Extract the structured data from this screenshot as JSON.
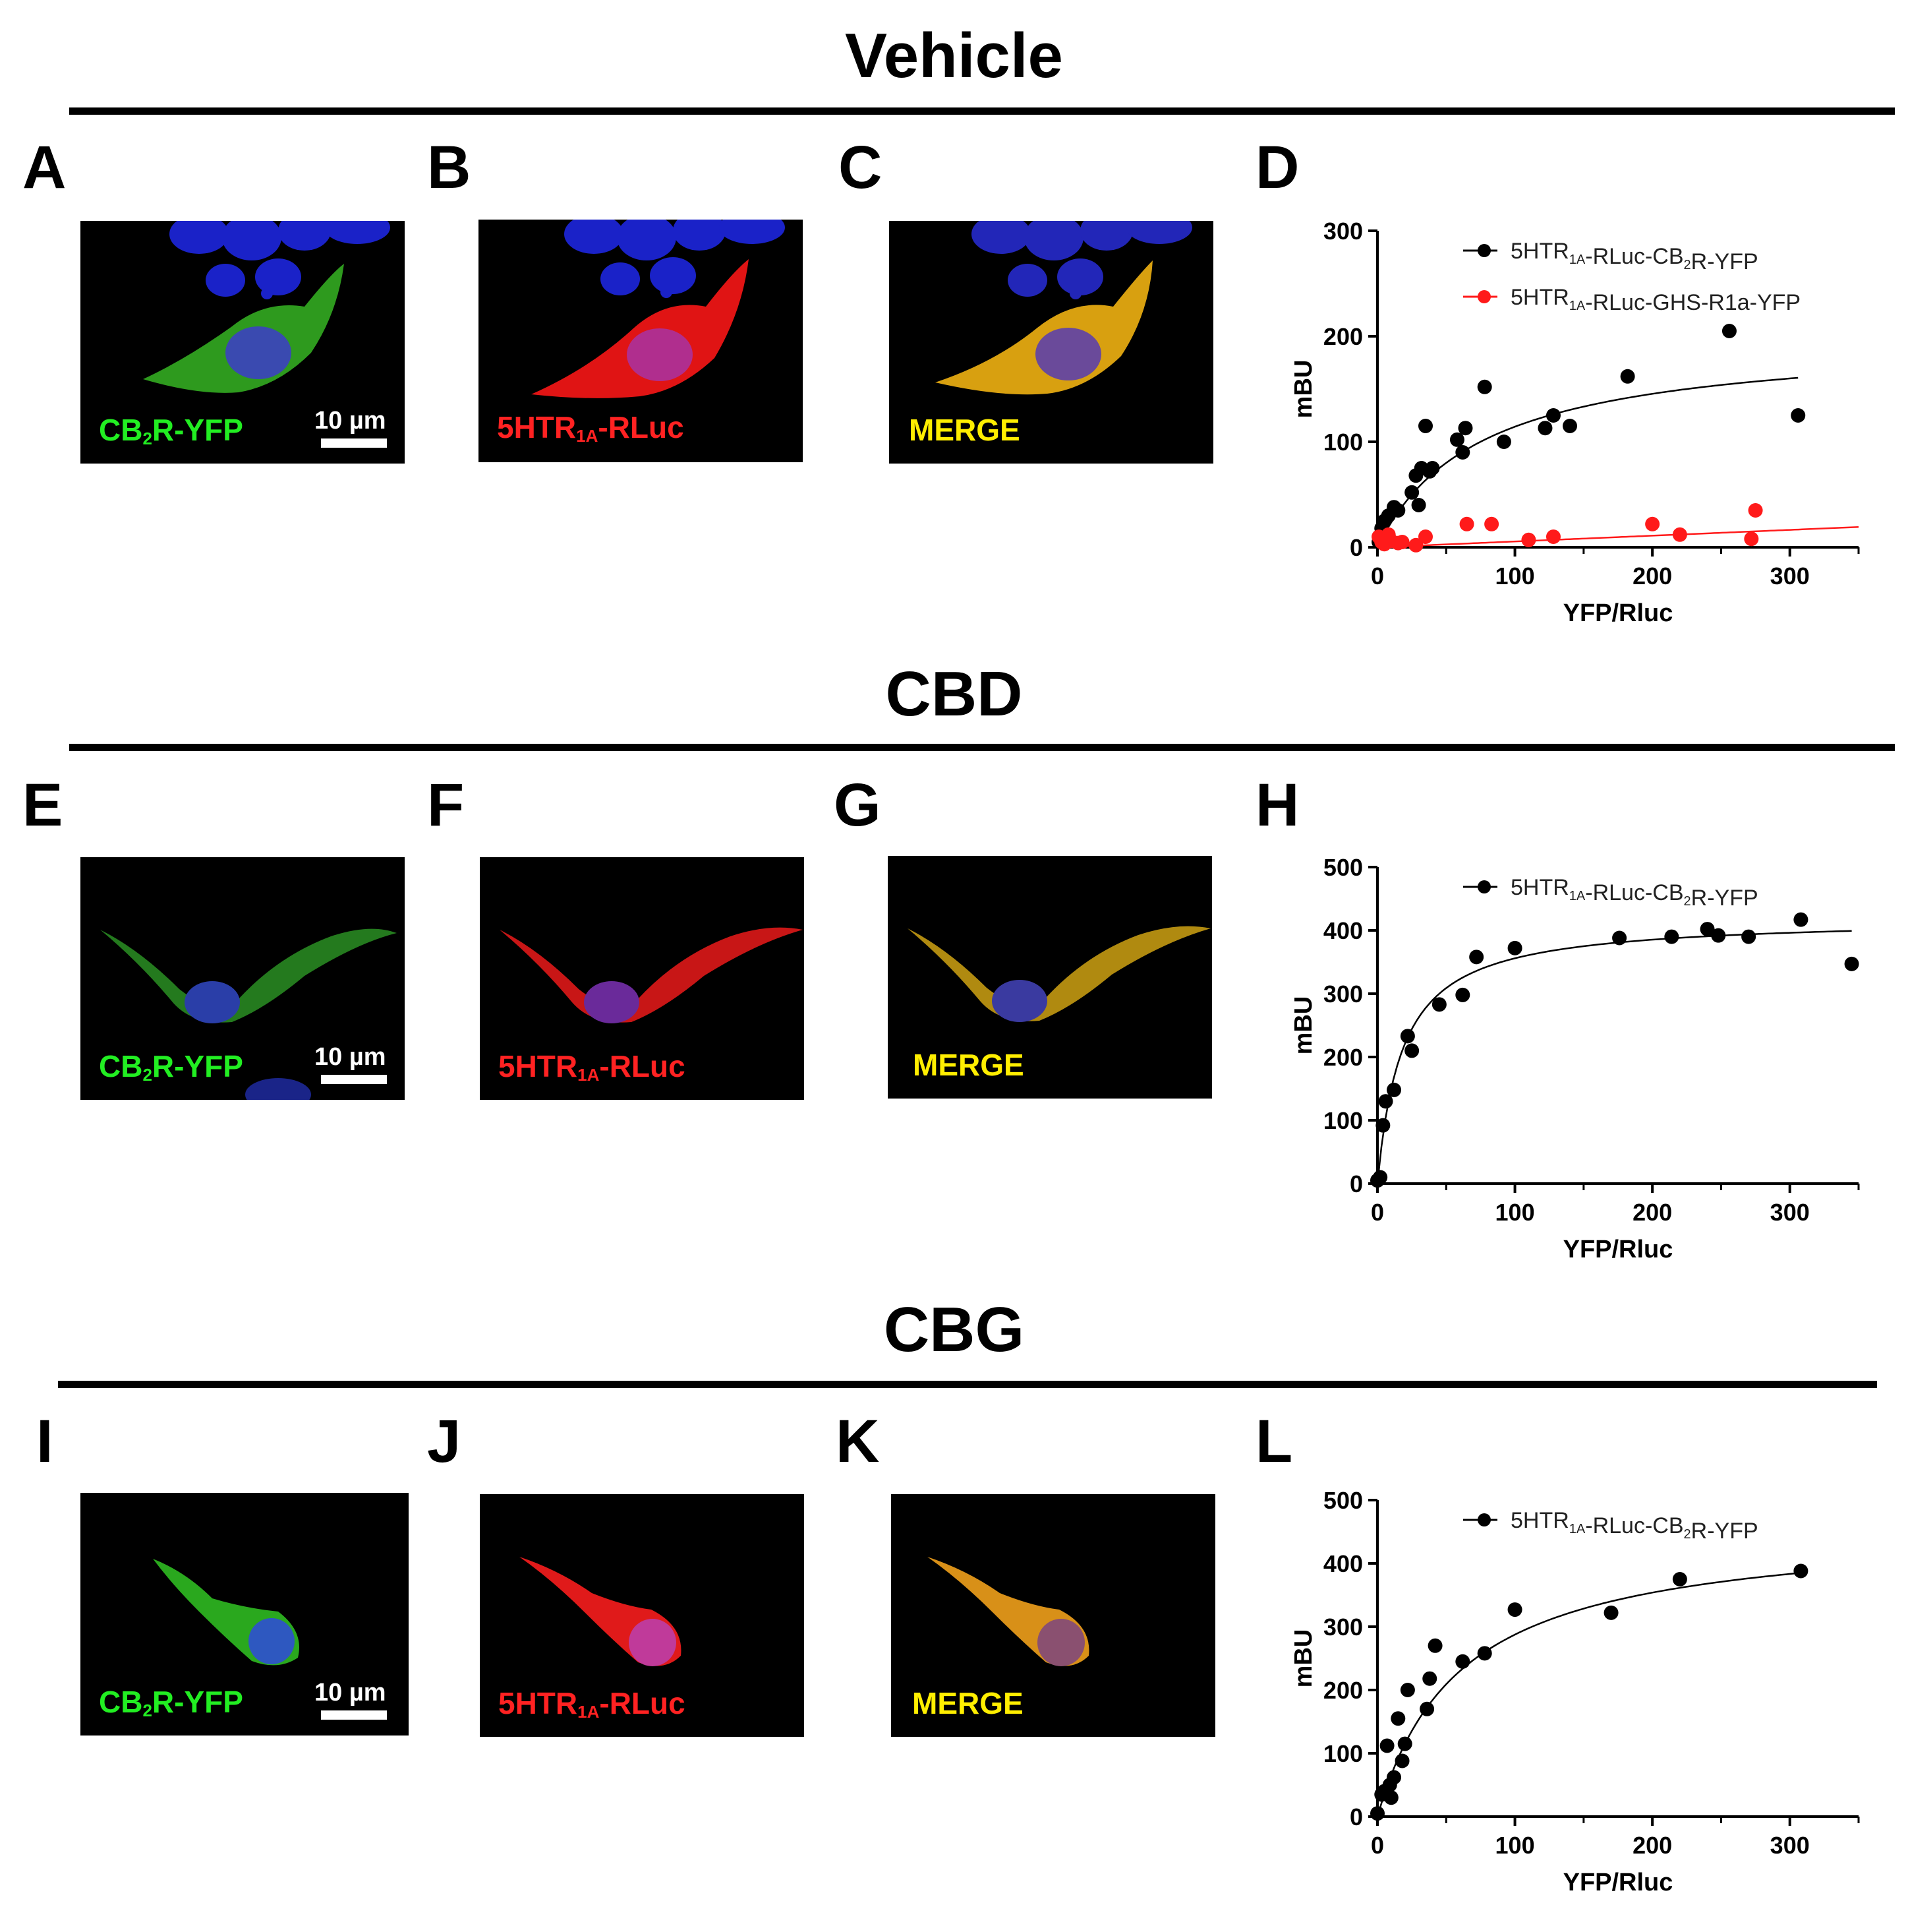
{
  "sections": [
    {
      "title": "Vehicle",
      "letters": [
        "A",
        "B",
        "C",
        "D"
      ]
    },
    {
      "title": "CBD",
      "letters": [
        "E",
        "F",
        "G",
        "H"
      ]
    },
    {
      "title": "CBG",
      "letters": [
        "I",
        "J",
        "K",
        "L"
      ]
    }
  ],
  "micrograph_labels": {
    "green_main": "CB",
    "green_sub": "2",
    "green_rest": "R-YFP",
    "red_main": "5HTR",
    "red_sub": "1A",
    "red_rest": "-RLuc",
    "merge": "MERGE",
    "scale": "10 µm"
  },
  "colors": {
    "black_series": "#000000",
    "red_series": "#ff1a1a",
    "green": "#22ee22",
    "red": "#ff2222",
    "yellow": "#ffee00"
  },
  "chart_data": [
    {
      "type": "scatter",
      "panel": "D",
      "xlabel": "YFP/Rluc",
      "ylabel": "mBU",
      "xlim": [
        0,
        350
      ],
      "ylim": [
        0,
        300
      ],
      "xticks": [
        0,
        100,
        200,
        300
      ],
      "yticks": [
        0,
        100,
        200,
        300
      ],
      "series": [
        {
          "name": "5HTR1A-RLuc-CB2R-YFP",
          "label_main": "5HTR",
          "label_sub1": "1A",
          "label_mid": "-RLuc-CB",
          "label_sub2": "2",
          "label_end": "R-YFP",
          "color": "#000000",
          "fit": {
            "model": "hyperbola",
            "bmax": 200,
            "kd": 75
          },
          "points": [
            [
              1,
              5
            ],
            [
              3,
              18
            ],
            [
              5,
              25
            ],
            [
              8,
              30
            ],
            [
              12,
              38
            ],
            [
              15,
              35
            ],
            [
              25,
              52
            ],
            [
              28,
              68
            ],
            [
              30,
              40
            ],
            [
              32,
              75
            ],
            [
              35,
              115
            ],
            [
              38,
              72
            ],
            [
              40,
              75
            ],
            [
              58,
              102
            ],
            [
              62,
              90
            ],
            [
              64,
              113
            ],
            [
              78,
              152
            ],
            [
              92,
              100
            ],
            [
              122,
              113
            ],
            [
              128,
              125
            ],
            [
              140,
              115
            ],
            [
              182,
              162
            ],
            [
              256,
              205
            ],
            [
              306,
              125
            ]
          ]
        },
        {
          "name": "5HTR1A-RLuc-GHS-R1a-YFP",
          "label_main": "5HTR",
          "label_sub1": "1A",
          "label_mid": "-RLuc-GHS-R1a-YFP",
          "label_sub2": "",
          "label_end": "",
          "color": "#ff1a1a",
          "fit": {
            "model": "linear",
            "slope": 0.055,
            "intercept": 0
          },
          "points": [
            [
              1,
              10
            ],
            [
              3,
              5
            ],
            [
              5,
              3
            ],
            [
              8,
              12
            ],
            [
              10,
              6
            ],
            [
              15,
              4
            ],
            [
              18,
              5
            ],
            [
              28,
              2
            ],
            [
              35,
              10
            ],
            [
              65,
              22
            ],
            [
              83,
              22
            ],
            [
              110,
              7
            ],
            [
              128,
              10
            ],
            [
              200,
              22
            ],
            [
              220,
              12
            ],
            [
              272,
              8
            ],
            [
              275,
              35
            ]
          ]
        }
      ]
    },
    {
      "type": "scatter",
      "panel": "H",
      "xlabel": "YFP/Rluc",
      "ylabel": "mBU",
      "xlim": [
        0,
        350
      ],
      "ylim": [
        0,
        500
      ],
      "xticks": [
        0,
        100,
        200,
        300
      ],
      "yticks": [
        0,
        100,
        200,
        300,
        400,
        500
      ],
      "series": [
        {
          "name": "5HTR1A-RLuc-CB2R-YFP",
          "label_main": "5HTR",
          "label_sub1": "1A",
          "label_mid": "-RLuc-CB",
          "label_sub2": "2",
          "label_end": "R-YFP",
          "color": "#000000",
          "fit": {
            "model": "hyperbola",
            "bmax": 420,
            "kd": 18
          },
          "points": [
            [
              0,
              5
            ],
            [
              2,
              10
            ],
            [
              4,
              92
            ],
            [
              6,
              130
            ],
            [
              12,
              148
            ],
            [
              22,
              233
            ],
            [
              25,
              210
            ],
            [
              45,
              283
            ],
            [
              62,
              298
            ],
            [
              72,
              358
            ],
            [
              100,
              372
            ],
            [
              176,
              388
            ],
            [
              214,
              390
            ],
            [
              240,
              402
            ],
            [
              248,
              392
            ],
            [
              270,
              390
            ],
            [
              308,
              417
            ],
            [
              345,
              347
            ]
          ]
        }
      ]
    },
    {
      "type": "scatter",
      "panel": "L",
      "xlabel": "YFP/Rluc",
      "ylabel": "mBU",
      "xlim": [
        0,
        350
      ],
      "ylim": [
        0,
        500
      ],
      "xticks": [
        0,
        100,
        200,
        300
      ],
      "yticks": [
        0,
        100,
        200,
        300,
        400,
        500
      ],
      "series": [
        {
          "name": "5HTR1A-RLuc-CB2R-YFP",
          "label_main": "5HTR",
          "label_sub1": "1A",
          "label_mid": "-RLuc-CB",
          "label_sub2": "2",
          "label_end": "R-YFP",
          "color": "#000000",
          "fit": {
            "model": "hyperbola",
            "bmax": 460,
            "kd": 60
          },
          "points": [
            [
              0,
              5
            ],
            [
              3,
              35
            ],
            [
              5,
              40
            ],
            [
              7,
              112
            ],
            [
              9,
              50
            ],
            [
              10,
              30
            ],
            [
              12,
              62
            ],
            [
              15,
              155
            ],
            [
              18,
              88
            ],
            [
              20,
              115
            ],
            [
              22,
              200
            ],
            [
              36,
              170
            ],
            [
              38,
              218
            ],
            [
              42,
              270
            ],
            [
              62,
              245
            ],
            [
              78,
              258
            ],
            [
              100,
              327
            ],
            [
              170,
              322
            ],
            [
              220,
              375
            ],
            [
              308,
              388
            ]
          ]
        }
      ]
    }
  ]
}
